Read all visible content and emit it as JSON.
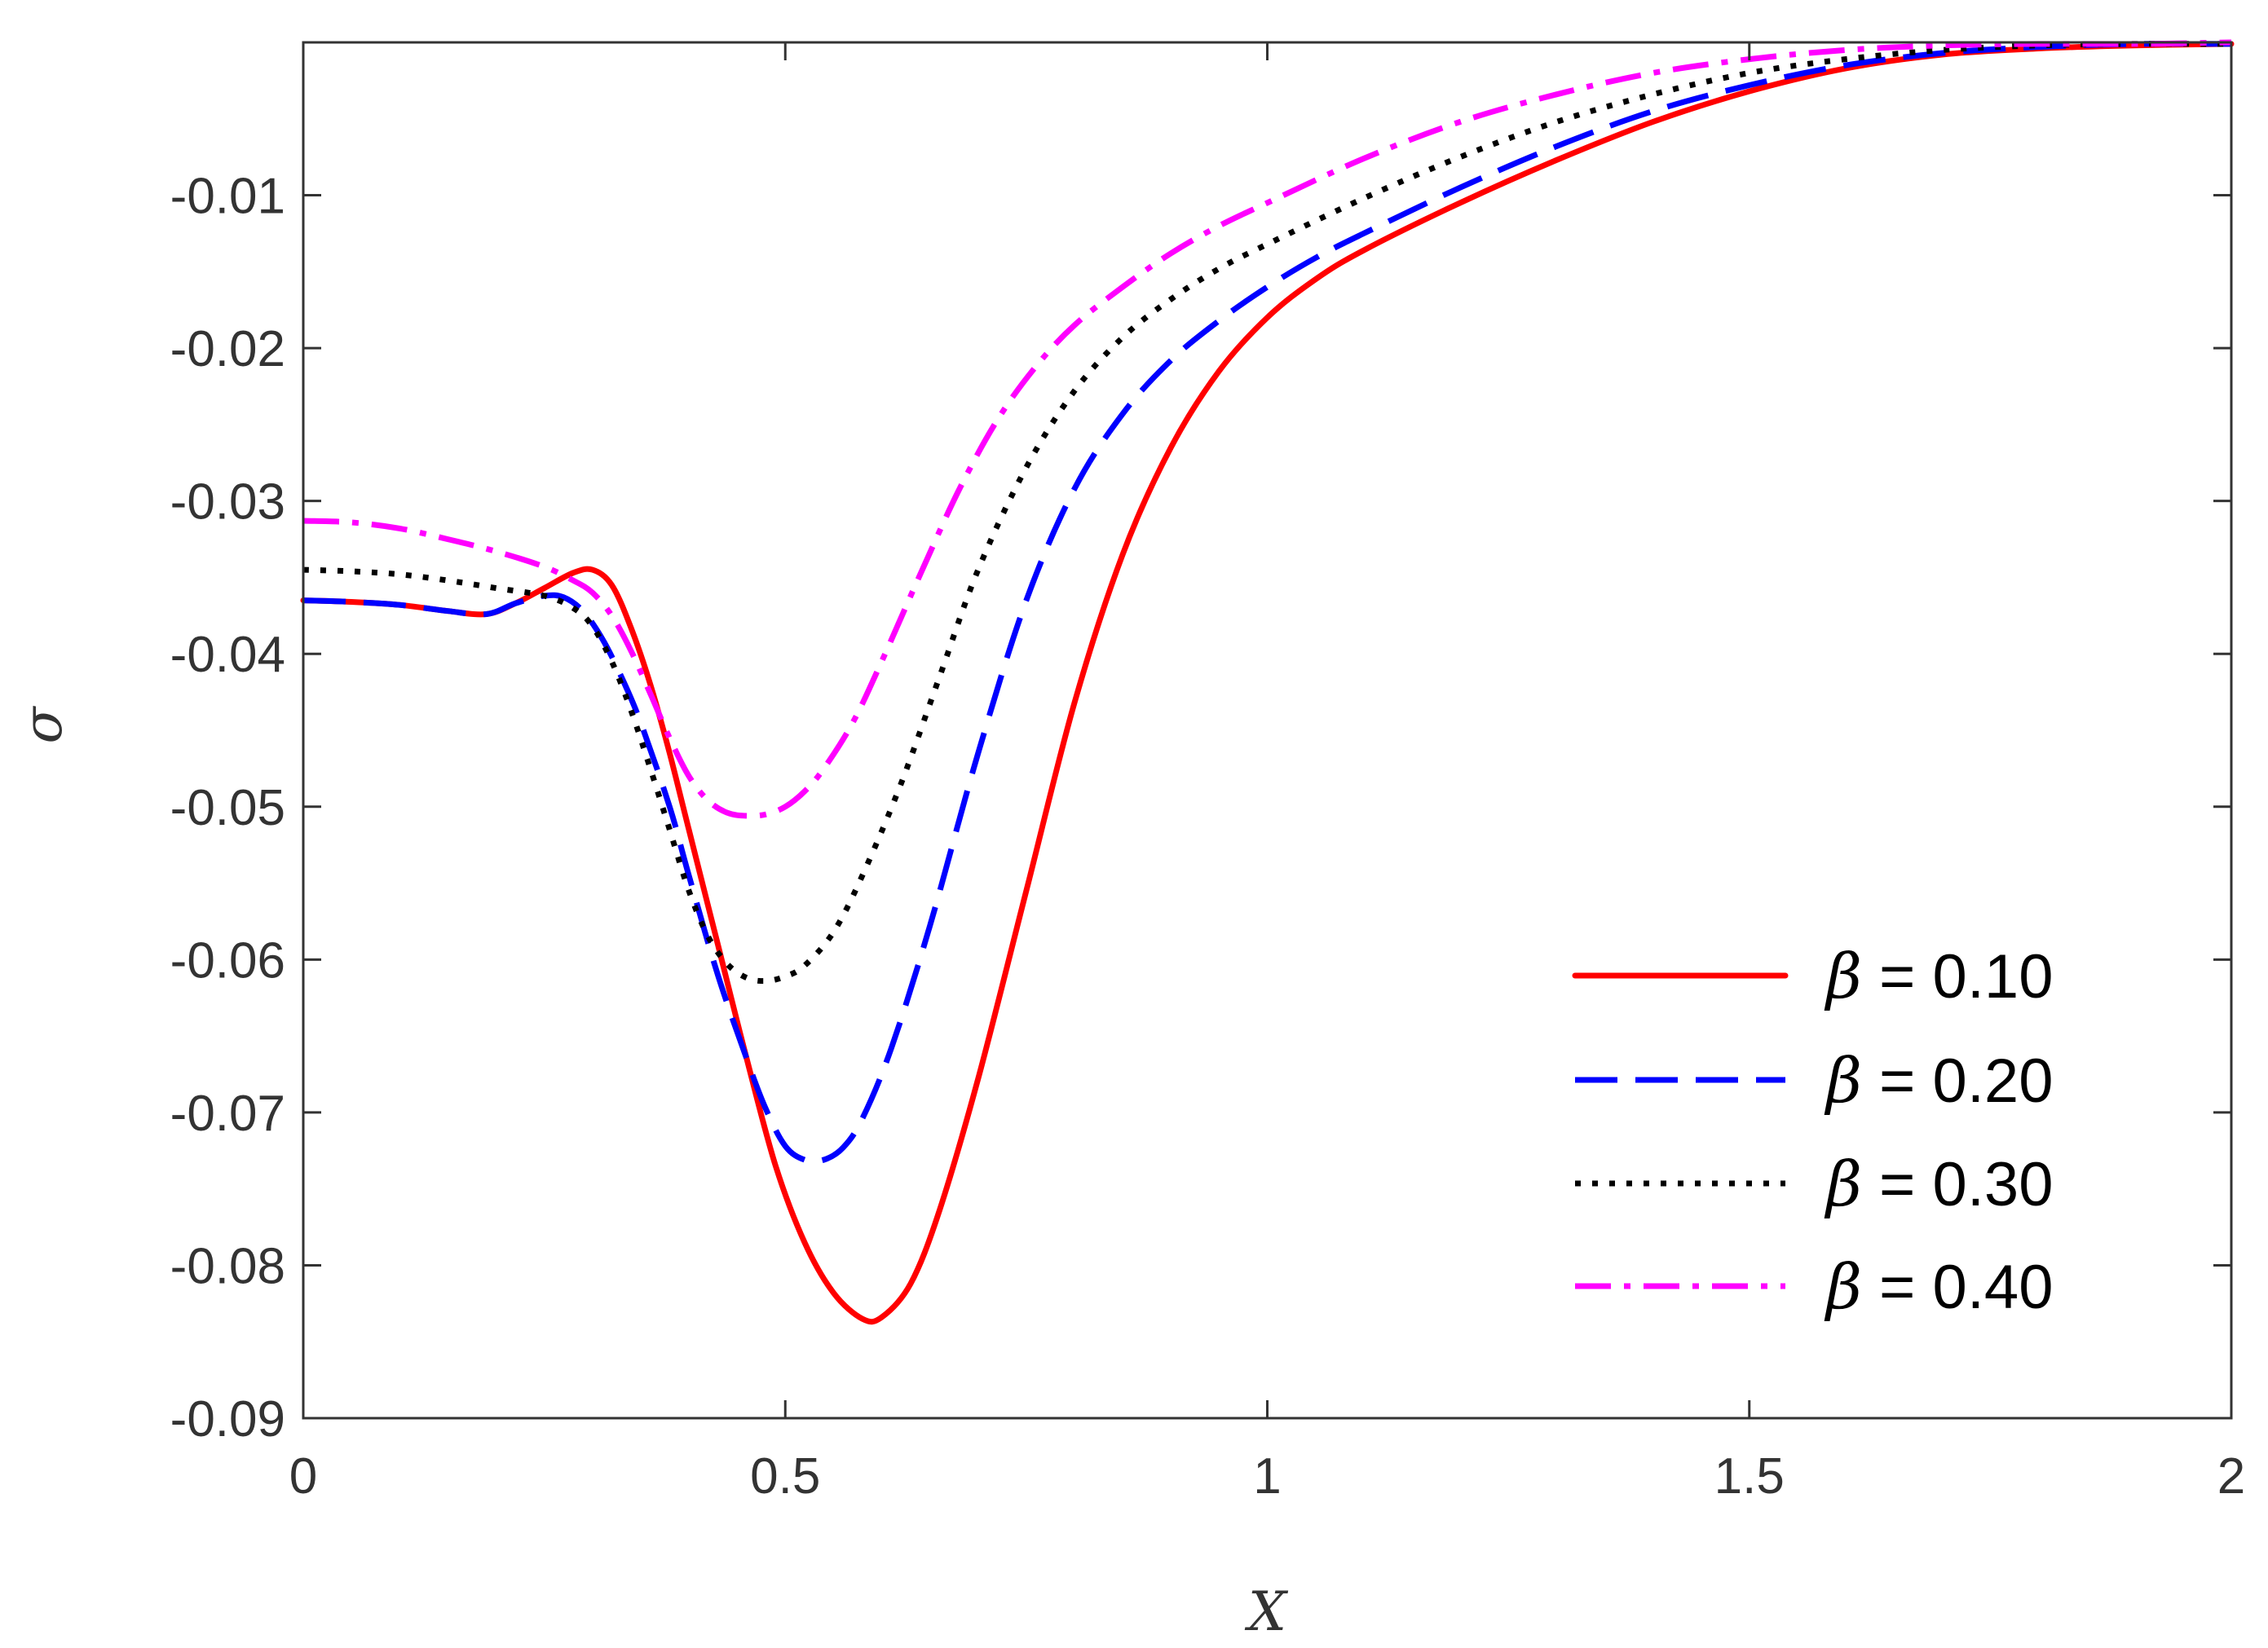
{
  "chart_data": {
    "type": "line",
    "title": "",
    "xlabel": "X",
    "ylabel": "σ",
    "xlim": [
      0,
      2
    ],
    "ylim": [
      -0.09,
      0.0
    ],
    "xticks": [
      0,
      0.5,
      1,
      1.5,
      2
    ],
    "xtick_labels": [
      "0",
      "0.5",
      "1",
      "1.5",
      "2"
    ],
    "yticks": [
      -0.09,
      -0.08,
      -0.07,
      -0.06,
      -0.05,
      -0.04,
      -0.03,
      -0.02,
      -0.01
    ],
    "ytick_labels": [
      "-0.09",
      "-0.08",
      "-0.07",
      "-0.06",
      "-0.05",
      "-0.04",
      "-0.03",
      "-0.02",
      "-0.01"
    ],
    "grid": false,
    "legend_position": "bottom-right",
    "series": [
      {
        "name": "β = 0.10",
        "symbol": "β",
        "value_label": " = 0.10",
        "color": "#ff0000",
        "style": "solid",
        "x": [
          0,
          0.05,
          0.1,
          0.15,
          0.19,
          0.22,
          0.25,
          0.28,
          0.3,
          0.32,
          0.34,
          0.36,
          0.38,
          0.4,
          0.43,
          0.46,
          0.49,
          0.52,
          0.55,
          0.58,
          0.6,
          0.63,
          0.66,
          0.7,
          0.75,
          0.8,
          0.85,
          0.9,
          0.95,
          1.0,
          1.05,
          1.1,
          1.2,
          1.3,
          1.4,
          1.5,
          1.6,
          1.7,
          1.8,
          1.9,
          2.0
        ],
        "y": [
          -0.0365,
          -0.0366,
          -0.0368,
          -0.0372,
          -0.0374,
          -0.0367,
          -0.0357,
          -0.0347,
          -0.0345,
          -0.0355,
          -0.0383,
          -0.042,
          -0.0465,
          -0.0515,
          -0.059,
          -0.0665,
          -0.0735,
          -0.0785,
          -0.0818,
          -0.0835,
          -0.0834,
          -0.0812,
          -0.0764,
          -0.0678,
          -0.0555,
          -0.0432,
          -0.0335,
          -0.0265,
          -0.0215,
          -0.018,
          -0.0155,
          -0.0136,
          -0.0105,
          -0.0077,
          -0.0052,
          -0.0032,
          -0.0017,
          -0.0008,
          -0.0004,
          -0.0002,
          -0.0001
        ]
      },
      {
        "name": "β = 0.20",
        "symbol": "β",
        "value_label": " = 0.20",
        "color": "#0000ff",
        "style": "dashed",
        "x": [
          0,
          0.05,
          0.1,
          0.15,
          0.19,
          0.22,
          0.25,
          0.27,
          0.29,
          0.31,
          0.33,
          0.35,
          0.38,
          0.4,
          0.43,
          0.46,
          0.48,
          0.5,
          0.52,
          0.54,
          0.56,
          0.58,
          0.61,
          0.65,
          0.7,
          0.75,
          0.8,
          0.85,
          0.9,
          0.95,
          1.0,
          1.05,
          1.1,
          1.2,
          1.3,
          1.4,
          1.5,
          1.6,
          1.7,
          1.8,
          1.9,
          2.0
        ],
        "y": [
          -0.0365,
          -0.0366,
          -0.0368,
          -0.0372,
          -0.0374,
          -0.0367,
          -0.0362,
          -0.0363,
          -0.0372,
          -0.039,
          -0.0415,
          -0.0445,
          -0.05,
          -0.0545,
          -0.061,
          -0.0665,
          -0.0698,
          -0.0722,
          -0.0731,
          -0.0731,
          -0.0723,
          -0.0704,
          -0.0658,
          -0.0578,
          -0.0465,
          -0.0365,
          -0.0292,
          -0.0243,
          -0.0208,
          -0.0182,
          -0.016,
          -0.0141,
          -0.0125,
          -0.0095,
          -0.0068,
          -0.0045,
          -0.0028,
          -0.0015,
          -0.0007,
          -0.0003,
          -0.0001,
          -0.0001
        ]
      },
      {
        "name": "β = 0.30",
        "symbol": "β",
        "value_label": " = 0.30",
        "color": "#000000",
        "style": "dotted",
        "x": [
          0,
          0.05,
          0.1,
          0.15,
          0.2,
          0.25,
          0.28,
          0.3,
          0.32,
          0.34,
          0.36,
          0.38,
          0.4,
          0.42,
          0.44,
          0.46,
          0.48,
          0.5,
          0.52,
          0.55,
          0.58,
          0.62,
          0.66,
          0.7,
          0.75,
          0.8,
          0.85,
          0.9,
          0.95,
          1.0,
          1.1,
          1.2,
          1.3,
          1.4,
          1.5,
          1.6,
          1.7,
          1.8,
          1.9,
          2.0
        ],
        "y": [
          -0.0345,
          -0.0346,
          -0.0348,
          -0.0352,
          -0.0357,
          -0.0362,
          -0.037,
          -0.0382,
          -0.0405,
          -0.0437,
          -0.0475,
          -0.0515,
          -0.0555,
          -0.0585,
          -0.0603,
          -0.0612,
          -0.0614,
          -0.0611,
          -0.0604,
          -0.0582,
          -0.0545,
          -0.0485,
          -0.0415,
          -0.0345,
          -0.0278,
          -0.0228,
          -0.0193,
          -0.0168,
          -0.0148,
          -0.0132,
          -0.0102,
          -0.0075,
          -0.0052,
          -0.0034,
          -0.002,
          -0.0011,
          -0.0005,
          -0.0002,
          -0.0001,
          -0.0001
        ]
      },
      {
        "name": "β = 0.40",
        "symbol": "β",
        "value_label": " = 0.40",
        "color": "#ff00ff",
        "style": "dashdot",
        "x": [
          0,
          0.05,
          0.1,
          0.15,
          0.2,
          0.25,
          0.28,
          0.3,
          0.32,
          0.34,
          0.36,
          0.38,
          0.4,
          0.42,
          0.44,
          0.46,
          0.48,
          0.5,
          0.52,
          0.54,
          0.57,
          0.6,
          0.64,
          0.68,
          0.72,
          0.76,
          0.8,
          0.85,
          0.9,
          0.95,
          1.0,
          1.1,
          1.2,
          1.3,
          1.4,
          1.5,
          1.6,
          1.7,
          1.8,
          1.9,
          2.0
        ],
        "y": [
          -0.0313,
          -0.0314,
          -0.0318,
          -0.0325,
          -0.0333,
          -0.0343,
          -0.0352,
          -0.036,
          -0.0375,
          -0.0398,
          -0.0426,
          -0.0455,
          -0.048,
          -0.0496,
          -0.0504,
          -0.0506,
          -0.0505,
          -0.05,
          -0.049,
          -0.0475,
          -0.0445,
          -0.0405,
          -0.0348,
          -0.0293,
          -0.0247,
          -0.0212,
          -0.0185,
          -0.016,
          -0.0138,
          -0.012,
          -0.0105,
          -0.0076,
          -0.0052,
          -0.0034,
          -0.002,
          -0.0011,
          -0.0005,
          -0.0002,
          -0.0001,
          -0.0001,
          0.0
        ]
      }
    ]
  }
}
